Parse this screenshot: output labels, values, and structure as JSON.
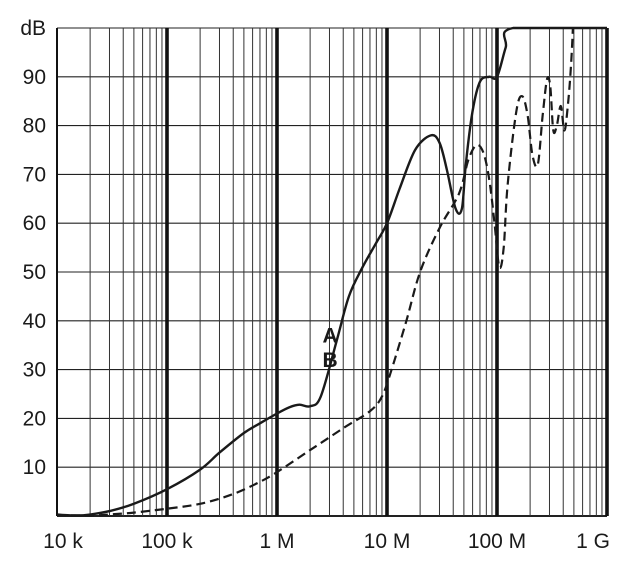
{
  "chart_data": {
    "type": "line",
    "title": "",
    "xlabel": "",
    "ylabel": "dB",
    "x_scale": "log",
    "xlim": [
      10000,
      1000000000
    ],
    "ylim": [
      0,
      100
    ],
    "grid": true,
    "x_ticks": [
      {
        "value": 10000,
        "label": "10 k"
      },
      {
        "value": 100000,
        "label": "100 k"
      },
      {
        "value": 1000000,
        "label": "1 M"
      },
      {
        "value": 10000000,
        "label": "10 M"
      },
      {
        "value": 100000000,
        "label": "100 M"
      },
      {
        "value": 1000000000,
        "label": "1 G"
      }
    ],
    "y_ticks": [
      {
        "value": 10,
        "label": "10"
      },
      {
        "value": 20,
        "label": "20"
      },
      {
        "value": 30,
        "label": "30"
      },
      {
        "value": 40,
        "label": "40"
      },
      {
        "value": 50,
        "label": "50"
      },
      {
        "value": 60,
        "label": "60"
      },
      {
        "value": 70,
        "label": "70"
      },
      {
        "value": 80,
        "label": "80"
      },
      {
        "value": 90,
        "label": "90"
      },
      {
        "value": 100,
        "label": "dB"
      }
    ],
    "series": [
      {
        "name": "A",
        "style": "solid",
        "color": "#1a1a1a",
        "points": [
          [
            10000,
            0.3
          ],
          [
            15000,
            0.1
          ],
          [
            20000,
            0.3
          ],
          [
            30000,
            1.0
          ],
          [
            50000,
            2.5
          ],
          [
            100000,
            5.5
          ],
          [
            200000,
            9.5
          ],
          [
            300000,
            13.0
          ],
          [
            500000,
            17.0
          ],
          [
            700000,
            19.0
          ],
          [
            1000000,
            21.0
          ],
          [
            1300000,
            22.3
          ],
          [
            1600000,
            22.8
          ],
          [
            2000000,
            22.5
          ],
          [
            2500000,
            24.5
          ],
          [
            3500000,
            36.0
          ],
          [
            4500000,
            45.0
          ],
          [
            6000000,
            51.0
          ],
          [
            8000000,
            56.0
          ],
          [
            10000000,
            60.0
          ],
          [
            13000000,
            67.0
          ],
          [
            18000000,
            75.0
          ],
          [
            25000000,
            78.0
          ],
          [
            30000000,
            76.5
          ],
          [
            35000000,
            71.0
          ],
          [
            42000000,
            63.0
          ],
          [
            48000000,
            63.0
          ],
          [
            52000000,
            72.0
          ],
          [
            60000000,
            83.0
          ],
          [
            70000000,
            89.0
          ],
          [
            85000000,
            90.0
          ],
          [
            100000000,
            90.0
          ],
          [
            120000000,
            96.0
          ],
          [
            140000000,
            100.0
          ],
          [
            1000000000,
            100.0
          ]
        ]
      },
      {
        "name": "B",
        "style": "dashed",
        "color": "#1a1a1a",
        "points": [
          [
            10000,
            0.2
          ],
          [
            20000,
            0.1
          ],
          [
            30000,
            0.3
          ],
          [
            50000,
            0.7
          ],
          [
            100000,
            1.5
          ],
          [
            200000,
            2.5
          ],
          [
            400000,
            4.5
          ],
          [
            700000,
            7.0
          ],
          [
            1000000,
            9.0
          ],
          [
            2000000,
            13.5
          ],
          [
            4000000,
            18.0
          ],
          [
            7000000,
            21.5
          ],
          [
            9000000,
            24.5
          ],
          [
            11000000,
            30.0
          ],
          [
            15000000,
            40.0
          ],
          [
            20000000,
            50.0
          ],
          [
            30000000,
            59.0
          ],
          [
            45000000,
            66.0
          ],
          [
            55000000,
            73.0
          ],
          [
            65000000,
            76.0
          ],
          [
            75000000,
            74.5
          ],
          [
            85000000,
            69.0
          ],
          [
            95000000,
            60.0
          ],
          [
            105000000,
            51.0
          ],
          [
            115000000,
            55.0
          ],
          [
            125000000,
            68.0
          ],
          [
            150000000,
            83.0
          ],
          [
            170000000,
            86.0
          ],
          [
            190000000,
            82.0
          ],
          [
            210000000,
            74.0
          ],
          [
            235000000,
            72.0
          ],
          [
            260000000,
            82.0
          ],
          [
            285000000,
            89.5
          ],
          [
            305000000,
            88.0
          ],
          [
            325000000,
            79.0
          ],
          [
            350000000,
            80.0
          ],
          [
            380000000,
            84.0
          ],
          [
            410000000,
            79.0
          ],
          [
            440000000,
            84.0
          ],
          [
            470000000,
            92.0
          ],
          [
            490000000,
            100.0
          ]
        ]
      }
    ],
    "annotations": [
      {
        "text": "A",
        "x": 2000000,
        "y": 37
      },
      {
        "text": "B",
        "x": 2000000,
        "y": 32
      }
    ]
  }
}
